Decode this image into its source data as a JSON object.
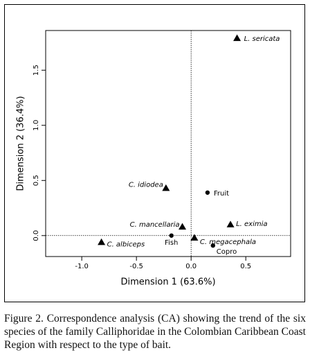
{
  "chart_data": {
    "type": "scatter",
    "xlabel": "Dimension 1 (63.6%)",
    "ylabel": "Dimension 2 (36.4%)",
    "xlim": [
      -1.33,
      0.91
    ],
    "ylim": [
      -0.19,
      1.86
    ],
    "xticks": [
      {
        "value": -1,
        "label": "-1.0"
      },
      -0.5,
      {
        "value": 0,
        "label": "0.0"
      },
      0.5
    ],
    "yticks": [
      {
        "value": 0,
        "label": "0.0"
      },
      0.5,
      {
        "value": 1,
        "label": "1.0"
      },
      1.5
    ],
    "zero_lines": true,
    "series": [
      {
        "marker": "triangle",
        "color": "#000000",
        "label_style": "italic",
        "labels": [
          "L. sericata",
          "C. idiodea",
          "C. mancellaria",
          "L. eximia",
          "C. megacephala",
          "C. albiceps"
        ],
        "x": [
          0.42,
          -0.23,
          -0.08,
          0.36,
          0.03,
          -0.82
        ],
        "values": [
          1.79,
          0.43,
          0.08,
          0.1,
          -0.02,
          -0.06
        ]
      },
      {
        "marker": "circle",
        "color": "#000000",
        "label_style": "normal",
        "labels": [
          "Fruit",
          "Fish",
          "Copro"
        ],
        "x": [
          0.15,
          -0.18,
          0.2
        ],
        "values": [
          0.39,
          0.0,
          -0.09
        ]
      }
    ]
  },
  "caption": "Figure 2. Correspondence analysis (CA) showing the trend of the six species of the family Calliphoridae in the Colombian Caribbean Coast Region with respect to the type of bait."
}
